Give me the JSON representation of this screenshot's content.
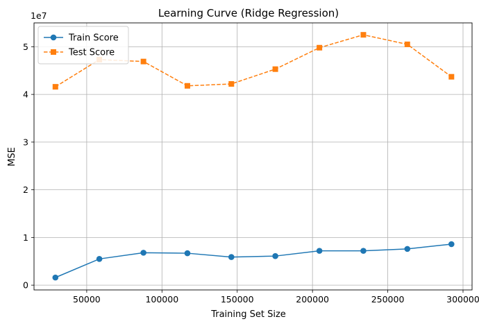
{
  "chart_data": {
    "type": "line",
    "title": "Learning Curve (Ridge Regression)",
    "xlabel": "Training Set Size",
    "ylabel": "MSE",
    "y_scale_label": "1e7",
    "xlim": [
      15000,
      306000
    ],
    "ylim": [
      -0.1,
      5.5
    ],
    "x_ticks": [
      50000,
      100000,
      150000,
      200000,
      250000,
      300000
    ],
    "x_tick_labels": [
      "50000",
      "100000",
      "150000",
      "200000",
      "250000",
      "300000"
    ],
    "y_ticks": [
      0,
      1,
      2,
      3,
      4,
      5
    ],
    "y_tick_labels": [
      "0",
      "1",
      "2",
      "3",
      "4",
      "5"
    ],
    "grid": true,
    "legend_position": "upper-left",
    "x": [
      29200,
      58400,
      87700,
      116900,
      146100,
      175300,
      204600,
      233800,
      263000,
      292300
    ],
    "series": [
      {
        "name": "Train Score",
        "color": "#1f77b4",
        "marker": "circle",
        "linestyle": "solid",
        "values": [
          0.16,
          0.55,
          0.68,
          0.67,
          0.59,
          0.61,
          0.72,
          0.72,
          0.76,
          0.86
        ]
      },
      {
        "name": "Test Score",
        "color": "#ff7f0e",
        "marker": "square",
        "linestyle": "dashed",
        "values": [
          4.16,
          4.73,
          4.69,
          4.18,
          4.22,
          4.53,
          4.98,
          5.25,
          5.05,
          4.37
        ]
      }
    ]
  }
}
